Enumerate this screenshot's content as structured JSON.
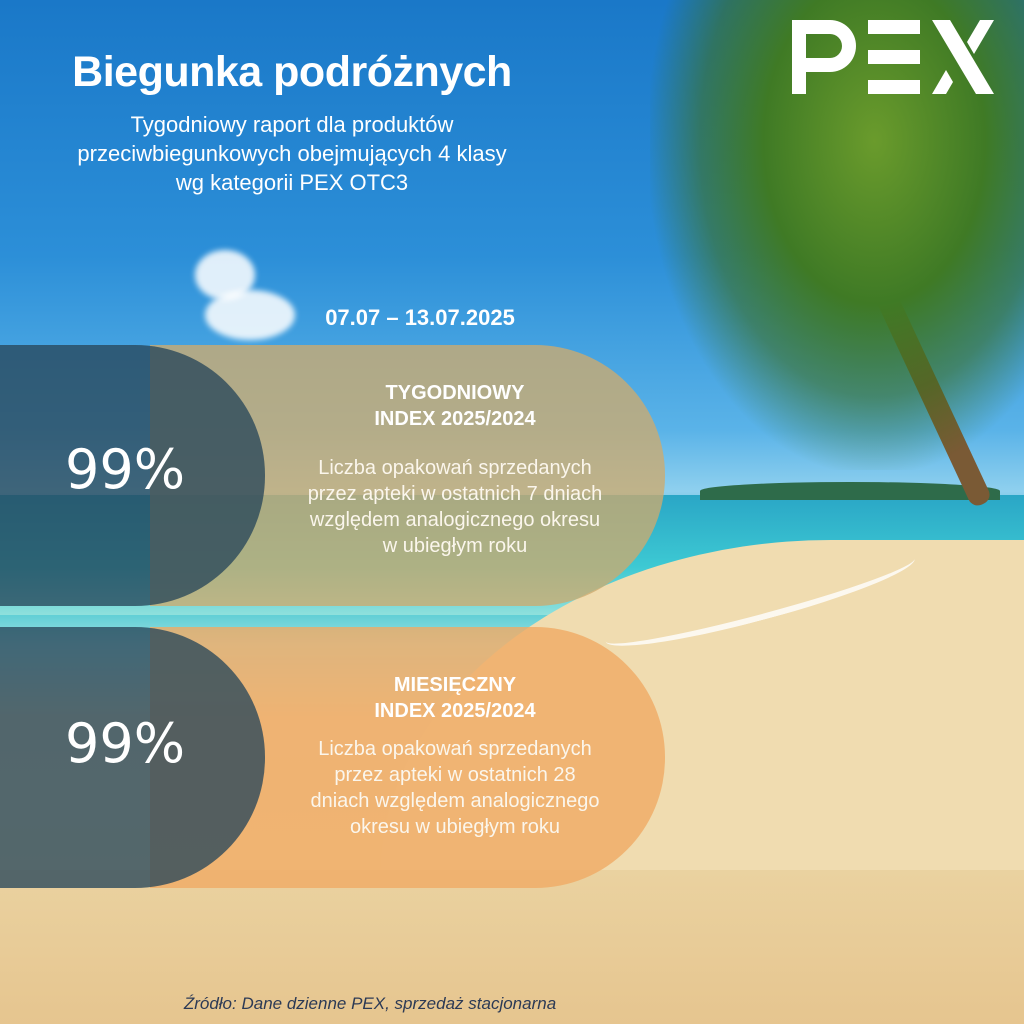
{
  "header": {
    "title": "Biegunka podróżnych",
    "subtitle_lines": [
      "Tygodniowy raport dla produktów",
      "przeciwbiegunkowych obejmujących 4 klasy",
      "wg kategorii PEX OTC3"
    ]
  },
  "logo": {
    "text": "PEX"
  },
  "period": "07.07 – 13.07.2025",
  "cards": [
    {
      "value": "99%",
      "title_lines": [
        "TYGODNIOWY",
        "INDEX 2025/2024"
      ],
      "desc_lines": [
        "Liczba opakowań sprzedanych",
        "przez apteki w ostatnich 7 dniach",
        "względem analogicznego okresu",
        "w ubiegłym roku"
      ],
      "color": "#cdaa6e"
    },
    {
      "value": "99%",
      "title_lines": [
        "MIESIĘCZNY",
        "INDEX 2025/2024"
      ],
      "desc_lines": [
        "Liczba opakowań sprzedanych",
        "przez apteki w ostatnich 28",
        "dniach względem analogicznego",
        "okresu w ubiegłym roku"
      ],
      "color": "#f0aa64"
    }
  ],
  "footer": {
    "source": "Źródło: Dane dzienne PEX, sprzedaż stacjonarna"
  }
}
